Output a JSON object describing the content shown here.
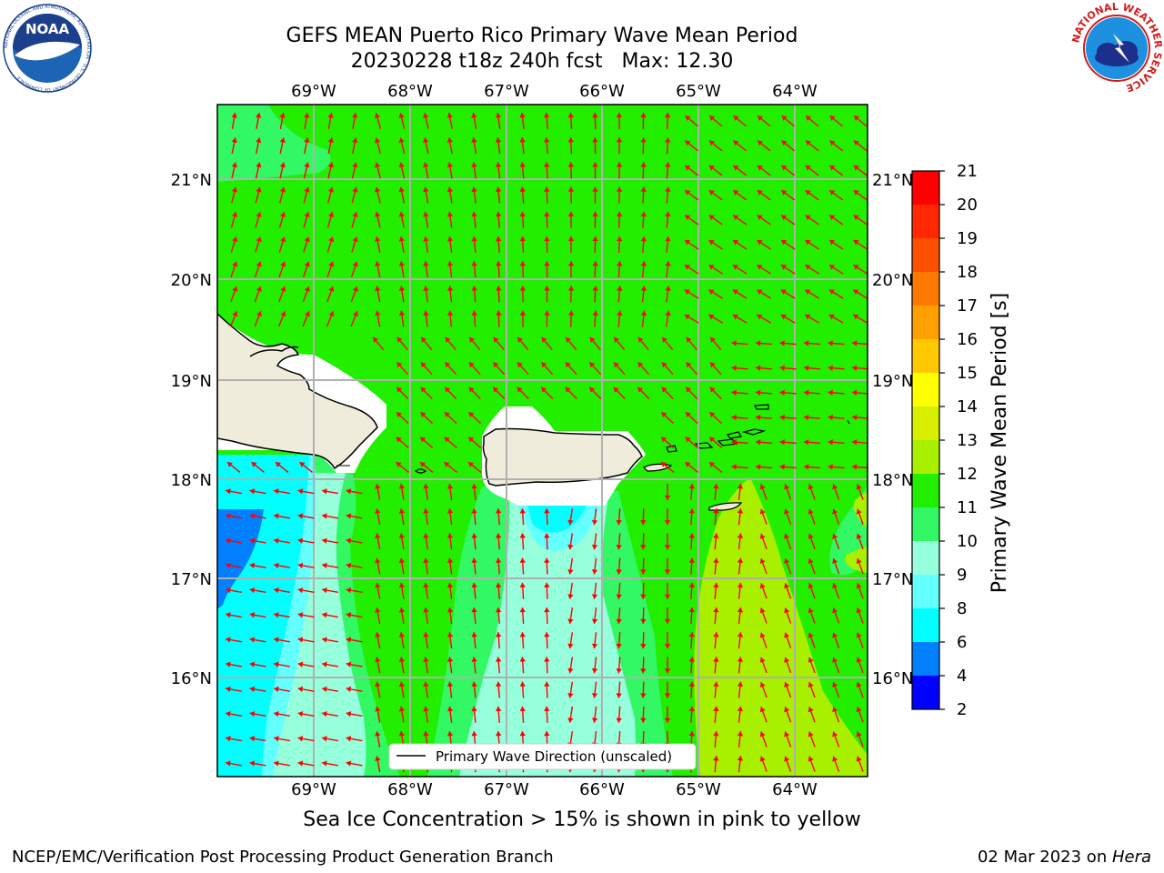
{
  "header": {
    "title_line1": "GEFS MEAN Puerto Rico Primary Wave Mean Period",
    "title_line2": "20230228 t18z 240h fcst   Max: 12.30"
  },
  "logos": {
    "left": {
      "name": "noaa-logo",
      "text": "NOAA",
      "ring_text": "NATIONAL OCEANIC AND ATMOSPHERIC ADMINISTRATION · U.S. DEPARTMENT OF COMMERCE"
    },
    "right": {
      "name": "nws-logo",
      "ring_text": "NATIONAL WEATHER SERVICE"
    }
  },
  "map": {
    "lon_labels": [
      "69°W",
      "68°W",
      "67°W",
      "66°W",
      "65°W",
      "64°W"
    ],
    "lat_labels": [
      "21°N",
      "20°N",
      "19°N",
      "18°N",
      "17°N",
      "16°N"
    ],
    "legend": "Primary Wave Direction (unscaled)",
    "background_color": "#22ee00",
    "arrow_color": "#ff0000",
    "land_color": "#efecdc"
  },
  "colorbar": {
    "label": "Primary Wave Mean Period [s]",
    "ticks": [
      "21",
      "20",
      "19",
      "18",
      "17",
      "16",
      "15",
      "14",
      "13",
      "12",
      "11",
      "10",
      "9",
      "8",
      "6",
      "4",
      "2"
    ],
    "colors": [
      "#ff0000",
      "#ff2800",
      "#ff5000",
      "#ff7800",
      "#ffa000",
      "#ffc800",
      "#ffff00",
      "#d8f000",
      "#a8f000",
      "#22ee00",
      "#32f864",
      "#96ffdc",
      "#64ffff",
      "#00ffff",
      "#0080ff",
      "#0000ff"
    ]
  },
  "caption": "Sea Ice Concentration > 15% is shown in pink to yellow",
  "footer": {
    "left": "NCEP/EMC/Verification Post Processing Product Generation Branch",
    "right_date": "02 Mar 2023 on ",
    "right_host": "Hera"
  }
}
